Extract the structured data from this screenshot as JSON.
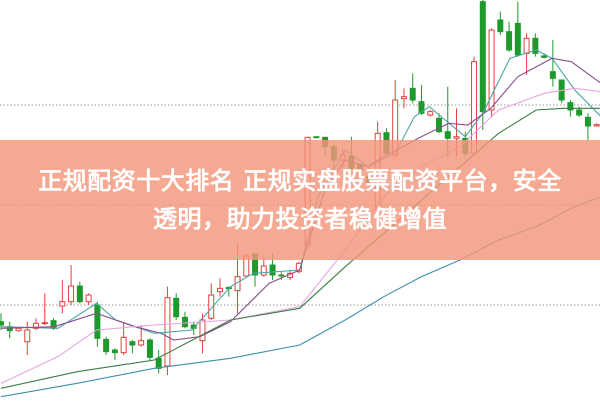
{
  "banner": {
    "line1": "正规配资十大排名 正规实盘股票配资平台，安全",
    "line2": "透明，助力投资者稳健增值"
  },
  "colors": {
    "up": "#e0403c",
    "down": "#1e9a2c",
    "grid": "#9a9a9a",
    "banner": "#f3967a"
  },
  "chart_data": {
    "type": "candlestick",
    "title": "",
    "xlabel": "",
    "ylabel": "",
    "ylim": [
      0,
      120
    ],
    "grid": "horizontal dotted",
    "grid_levels": [
      88.5,
      58.5,
      28.5
    ],
    "ohlc": [
      [
        23.5,
        26,
        21,
        22.5
      ],
      [
        22,
        23.5,
        18.5,
        20.8
      ],
      [
        20.8,
        21.5,
        20.5,
        21.5
      ],
      [
        17.5,
        23.5,
        13.5,
        21
      ],
      [
        21.5,
        24.5,
        21,
        23
      ],
      [
        23,
        32,
        22.5,
        23.2
      ],
      [
        23.8,
        24.5,
        21,
        21.5
      ],
      [
        28.2,
        36,
        26,
        29.5
      ],
      [
        29.5,
        40.5,
        28.5,
        34.2
      ],
      [
        34.2,
        35.5,
        29,
        29.5
      ],
      [
        29.5,
        32,
        28.5,
        31.5
      ],
      [
        28.5,
        29.5,
        16,
        18.5
      ],
      [
        18.2,
        19,
        13.5,
        14.5
      ],
      [
        15,
        15.5,
        12,
        14.2
      ],
      [
        14.2,
        23,
        13.5,
        18.8
      ],
      [
        17.5,
        18,
        14,
        16.5
      ],
      [
        16.5,
        22.5,
        16,
        17.8
      ],
      [
        18,
        18.5,
        12,
        12.8
      ],
      [
        12.5,
        15,
        8,
        9.5
      ],
      [
        10.2,
        34,
        7.5,
        30.7
      ],
      [
        30.5,
        32,
        24,
        25
      ],
      [
        24.8,
        26.5,
        21.5,
        22
      ],
      [
        22.5,
        23.5,
        19.5,
        21.5
      ],
      [
        17.8,
        26,
        14,
        24
      ],
      [
        24.5,
        35,
        24,
        31.5
      ],
      [
        32.5,
        36.5,
        31,
        33.5
      ],
      [
        33.8,
        34,
        31,
        33.4
      ],
      [
        32.8,
        47,
        26,
        37
      ],
      [
        37.2,
        44,
        37,
        43.2
      ],
      [
        43.8,
        44,
        34,
        37.5
      ],
      [
        37.5,
        43,
        37,
        40.2
      ],
      [
        40.5,
        44,
        36,
        37.5
      ],
      [
        37.5,
        38.5,
        36,
        37.2
      ],
      [
        36.8,
        39,
        36,
        38
      ],
      [
        38.5,
        41.5,
        38,
        41
      ],
      [
        46.5,
        79,
        46,
        78.8
      ],
      [
        79,
        79,
        78.5,
        78.8
      ],
      [
        78.8,
        79,
        73,
        76
      ],
      [
        76,
        76.8,
        69,
        72
      ],
      [
        72,
        75.5,
        69.5,
        73.5
      ],
      [
        73.2,
        79,
        69,
        69.5
      ],
      [
        70.5,
        71,
        68.5,
        69
      ],
      [
        67,
        70,
        64,
        65.2
      ],
      [
        57,
        83.5,
        56.5,
        80
      ],
      [
        80.2,
        81.5,
        73.5,
        74
      ],
      [
        73.5,
        96,
        73,
        90
      ],
      [
        90.4,
        93.5,
        87.5,
        91
      ],
      [
        93.5,
        98,
        89,
        90
      ],
      [
        89.5,
        94.5,
        85.5,
        86
      ],
      [
        85.5,
        87,
        85,
        86.5
      ],
      [
        84.5,
        86,
        80,
        80.5
      ],
      [
        80.5,
        94,
        73,
        78.5
      ],
      [
        78.5,
        87.5,
        73,
        79
      ],
      [
        78.5,
        80.5,
        73,
        74
      ],
      [
        74,
        103,
        73.5,
        101.5
      ],
      [
        119.5,
        120,
        81,
        86.5
      ],
      [
        87,
        111.5,
        85,
        111
      ],
      [
        114,
        116.5,
        109.5,
        110.5
      ],
      [
        110.5,
        113.5,
        104.5,
        105
      ],
      [
        113,
        119.5,
        103,
        103.5
      ],
      [
        104,
        110,
        97.5,
        108.5
      ],
      [
        108.5,
        110,
        103,
        104
      ],
      [
        103.2,
        104,
        102.5,
        102.8
      ],
      [
        98.5,
        108,
        94,
        96.5
      ],
      [
        96,
        96,
        89,
        90
      ],
      [
        89.2,
        90,
        85,
        87
      ],
      [
        87,
        88,
        85,
        85.5
      ],
      [
        84.8,
        86,
        78,
        82.2
      ],
      [
        82.2,
        83,
        82,
        82.6
      ]
    ],
    "moving_averages": [
      {
        "color": "#4aa6a6",
        "points": [
          [
            0,
            22
          ],
          [
            6.5,
            21.5
          ],
          [
            10.9,
            29
          ],
          [
            13.1,
            24
          ],
          [
            17.5,
            20
          ],
          [
            21.8,
            21
          ],
          [
            26.2,
            34
          ],
          [
            28.8,
            38
          ],
          [
            34.1,
            39
          ],
          [
            36.2,
            61
          ],
          [
            39.3,
            75
          ],
          [
            41.9,
            70
          ],
          [
            45,
            74
          ],
          [
            47.2,
            85
          ],
          [
            48.9,
            88
          ],
          [
            50.7,
            84
          ],
          [
            53,
            79
          ],
          [
            55,
            86
          ],
          [
            58.1,
            102.5
          ],
          [
            61.1,
            105
          ],
          [
            62.9,
            102.5
          ],
          [
            65.5,
            93
          ],
          [
            68.5,
            85
          ]
        ]
      },
      {
        "color": "#8c4f8c",
        "points": [
          [
            0,
            21.5
          ],
          [
            6.1,
            22
          ],
          [
            10.9,
            26
          ],
          [
            15.3,
            22
          ],
          [
            18.3,
            20
          ],
          [
            19.7,
            18
          ],
          [
            22.7,
            19
          ],
          [
            26.2,
            23.5
          ],
          [
            30.6,
            35
          ],
          [
            34.1,
            39
          ],
          [
            37.1,
            64
          ],
          [
            39.3,
            72
          ],
          [
            41.9,
            70
          ],
          [
            43.7,
            73
          ],
          [
            48,
            79
          ],
          [
            51.1,
            83
          ],
          [
            53.3,
            82.5
          ],
          [
            55.9,
            87.5
          ],
          [
            59,
            97
          ],
          [
            62.9,
            102.5
          ],
          [
            65.1,
            101.5
          ],
          [
            68.5,
            95
          ]
        ]
      },
      {
        "color": "#e7a3e3",
        "points": [
          [
            0,
            5
          ],
          [
            6.5,
            13
          ],
          [
            10.9,
            21
          ],
          [
            17.5,
            22.5
          ],
          [
            26.2,
            24
          ],
          [
            34.1,
            28
          ],
          [
            39.3,
            45
          ],
          [
            43.7,
            61
          ],
          [
            48,
            70
          ],
          [
            52.4,
            76
          ],
          [
            56.8,
            87
          ],
          [
            62,
            92
          ],
          [
            65.5,
            93.5
          ],
          [
            68.5,
            92.5
          ]
        ]
      },
      {
        "color": "#3a7d44",
        "points": [
          [
            0,
            3.5
          ],
          [
            8.7,
            8.5
          ],
          [
            17.5,
            12
          ],
          [
            26.2,
            24
          ],
          [
            34.1,
            27.5
          ],
          [
            39.3,
            40
          ],
          [
            43.7,
            50
          ],
          [
            48,
            60
          ],
          [
            52.4,
            70
          ],
          [
            56.8,
            80
          ],
          [
            61.1,
            87
          ],
          [
            64.2,
            87.5
          ],
          [
            68.5,
            87.5
          ]
        ]
      },
      {
        "color": "#3d8fb0",
        "points": [
          [
            0,
            1
          ],
          [
            8.7,
            5
          ],
          [
            17.5,
            9.5
          ],
          [
            26.2,
            12.5
          ],
          [
            34.1,
            16.5
          ],
          [
            39.3,
            24
          ],
          [
            43.7,
            31
          ],
          [
            48,
            37
          ],
          [
            52.4,
            42
          ],
          [
            56.8,
            48
          ],
          [
            61.1,
            52
          ],
          [
            65.5,
            58
          ],
          [
            68.5,
            61
          ]
        ]
      }
    ]
  }
}
